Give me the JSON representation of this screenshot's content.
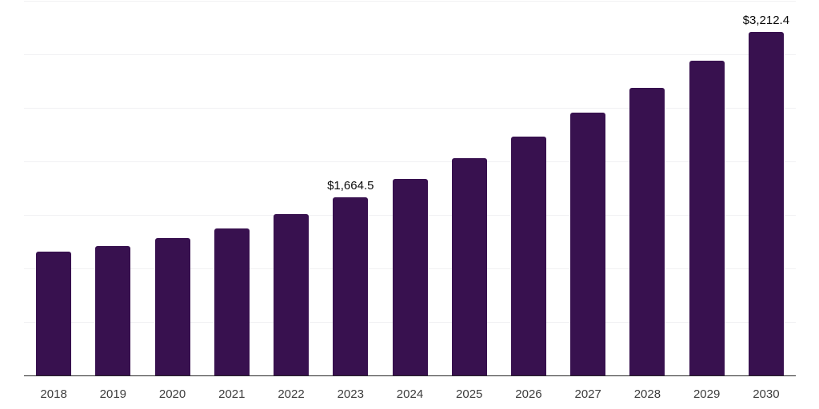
{
  "chart_data": {
    "type": "bar",
    "title": "",
    "xlabel": "",
    "ylabel": "",
    "categories": [
      "2018",
      "2019",
      "2020",
      "2021",
      "2022",
      "2023",
      "2024",
      "2025",
      "2026",
      "2027",
      "2028",
      "2029",
      "2030"
    ],
    "values": [
      1157,
      1210,
      1283,
      1375,
      1507,
      1664.5,
      1833,
      2031,
      2233,
      2455,
      2687,
      2940,
      3212.4
    ],
    "data_labels": [
      {
        "category": "2023",
        "text": "$1,664.5"
      },
      {
        "category": "2030",
        "text": "$3,212.4"
      }
    ],
    "ylim": [
      0,
      3500
    ],
    "gridline_step": 500,
    "grid": "horizontal",
    "y_axis_labels_visible": false,
    "legend": "none",
    "colors": {
      "bar": "#38114f",
      "gridline": "#f1f1f3",
      "axis_line": "#262626",
      "tick_label": "#3d3d3d",
      "value_label": "#0a0a0a",
      "background": "#ffffff"
    }
  }
}
